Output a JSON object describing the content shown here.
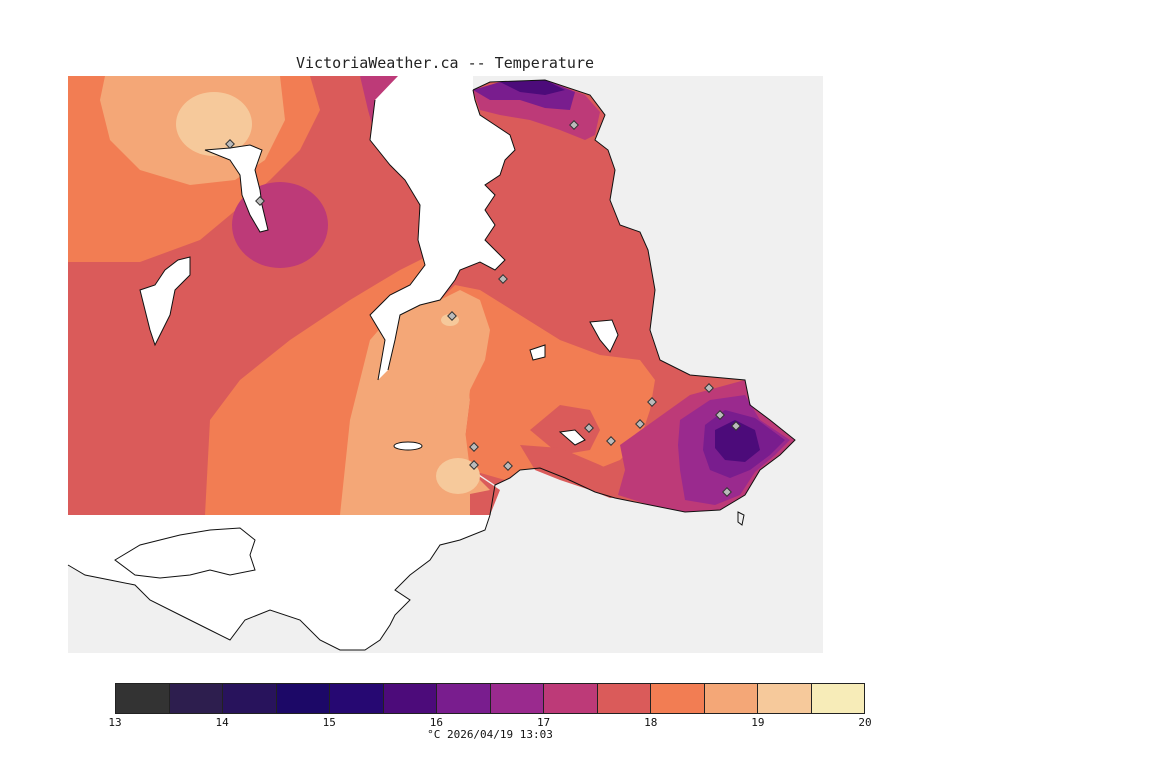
{
  "title": "VictoriaWeather.ca -- Temperature",
  "legend": {
    "ticks": [
      "13",
      "14",
      "15",
      "16",
      "17",
      "18",
      "19",
      "20"
    ],
    "colors": [
      "#333333",
      "#2d1e4e",
      "#28135c",
      "#1c0867",
      "#260872",
      "#4c0b7a",
      "#791d8e",
      "#9a2a8e",
      "#bd3a78",
      "#da5b5a",
      "#f27d53",
      "#f4a777",
      "#f6c99b",
      "#f7ecb8"
    ]
  },
  "caption": "°C  2026/04/19 13:03",
  "map": {
    "land_color": "#f0f0f0",
    "water_color": "#ffffff",
    "coast_color": "#111111"
  }
}
